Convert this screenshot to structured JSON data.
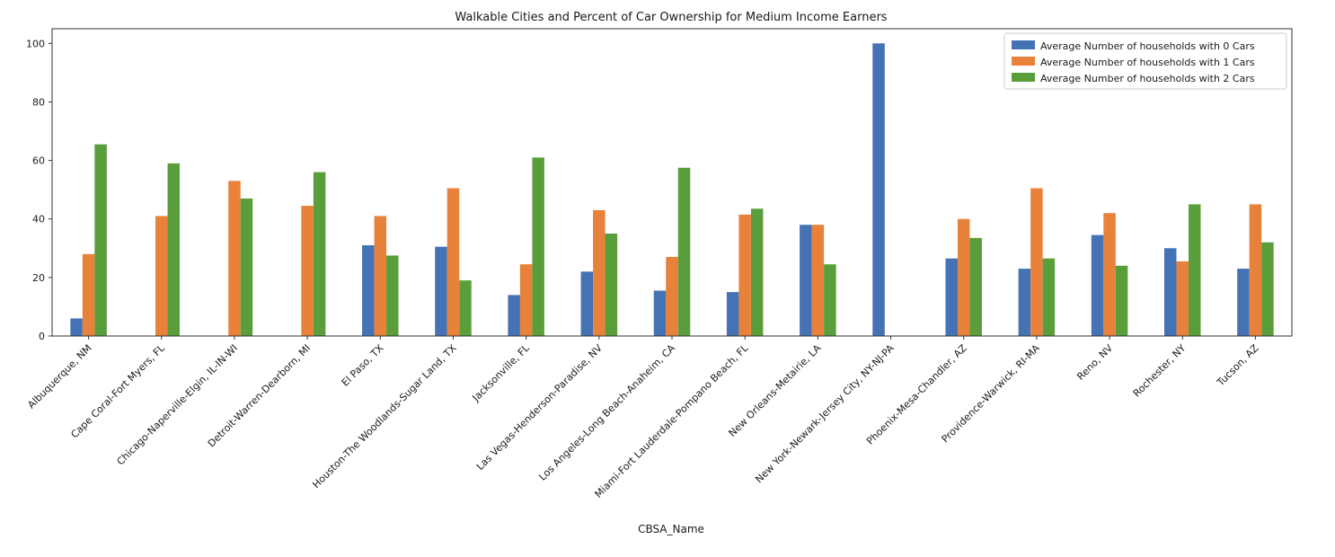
{
  "chart_data": {
    "type": "bar",
    "title": "Walkable Cities and Percent of Car Ownership for Medium Income Earners",
    "xlabel": "CBSA_Name",
    "ylabel": "",
    "ylim": [
      0,
      105
    ],
    "yticks": [
      0,
      20,
      40,
      60,
      80,
      100
    ],
    "grid": false,
    "legend_position": "top-right",
    "categories": [
      "Albuquerque, NM",
      "Cape Coral-Fort Myers, FL",
      "Chicago-Naperville-Elgin, IL-IN-WI",
      "Detroit-Warren-Dearborn, MI",
      "El Paso, TX",
      "Houston-The Woodlands-Sugar Land, TX",
      "Jacksonville, FL",
      "Las Vegas-Henderson-Paradise, NV",
      "Los Angeles-Long Beach-Anaheim, CA",
      "Miami-Fort Lauderdale-Pompano Beach, FL",
      "New Orleans-Metairie, LA",
      "New York-Newark-Jersey City, NY-NJ-PA",
      "Phoenix-Mesa-Chandler, AZ",
      "Providence-Warwick, RI-MA",
      "Reno, NV",
      "Rochester, NY",
      "Tucson, AZ"
    ],
    "series": [
      {
        "name": "Average Number of households with 0 Cars",
        "color": "#4472b4",
        "values": [
          6,
          0,
          0,
          0,
          31,
          30.5,
          14,
          22,
          15.5,
          15,
          38,
          100,
          26.5,
          23,
          34.5,
          30,
          23
        ]
      },
      {
        "name": "Average Number of households with 1 Cars",
        "color": "#e8823a",
        "values": [
          28,
          41,
          53,
          44.5,
          41,
          50.5,
          24.5,
          43,
          27,
          41.5,
          38,
          0,
          40,
          50.5,
          42,
          25.5,
          45
        ]
      },
      {
        "name": "Average Number of households with 2 Cars",
        "color": "#5a9e3c",
        "values": [
          65.5,
          59,
          47,
          56,
          27.5,
          19,
          61,
          35,
          57.5,
          43.5,
          24.5,
          0,
          33.5,
          26.5,
          24,
          45,
          32
        ]
      }
    ]
  }
}
